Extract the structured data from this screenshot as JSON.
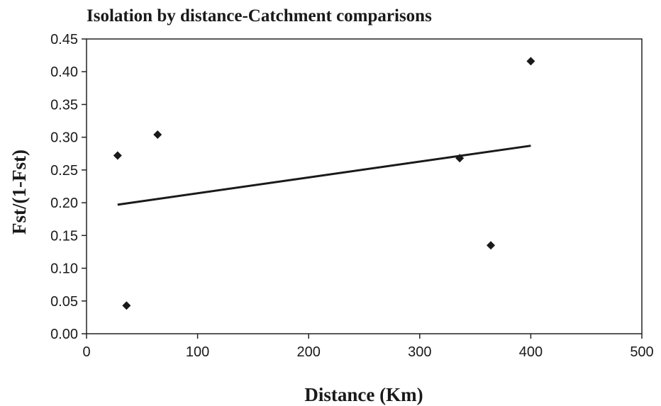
{
  "chart_data": {
    "type": "scatter",
    "title": "Isolation by distance-Catchment comparisons",
    "xlabel": "Distance (Km)",
    "ylabel": "Fst/(1-Fst)",
    "xlim": [
      0,
      500
    ],
    "ylim": [
      0,
      0.45
    ],
    "x_ticks": [
      "0",
      "100",
      "200",
      "300",
      "400",
      "500"
    ],
    "y_ticks": [
      "0.00",
      "0.05",
      "0.10",
      "0.15",
      "0.20",
      "0.25",
      "0.30",
      "0.35",
      "0.40",
      "0.45"
    ],
    "grid": false,
    "legend": "none",
    "series": [
      {
        "points": [
          {
            "x": 28,
            "y": 0.272
          },
          {
            "x": 36,
            "y": 0.043
          },
          {
            "x": 64,
            "y": 0.304
          },
          {
            "x": 336,
            "y": 0.268
          },
          {
            "x": 364,
            "y": 0.135
          },
          {
            "x": 400,
            "y": 0.416
          }
        ]
      }
    ],
    "trendline": {
      "x": [
        28,
        400
      ],
      "y": [
        0.197,
        0.287
      ]
    },
    "marker": "diamond",
    "colors": {
      "marker": "#1a1a1a",
      "line": "#1a1a1a"
    }
  }
}
